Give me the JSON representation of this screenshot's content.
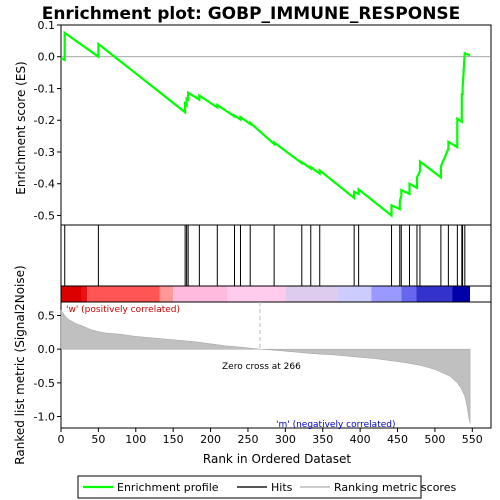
{
  "chart_data": [
    {
      "type": "line",
      "title": "Enrichment plot: GOBP_IMMUNE_RESPONSE",
      "ylabel": "Enrichment score (ES)",
      "ylim": [
        -0.53,
        0.1
      ],
      "yticks": [
        0.1,
        0.0,
        -0.1,
        -0.2,
        -0.3,
        -0.4,
        -0.5
      ],
      "ytick_labels": [
        "0.1",
        "0.0",
        "-0.1",
        "-0.2",
        "-0.3",
        "-0.4",
        "-0.5"
      ],
      "grid": false,
      "series": [
        {
          "name": "Enrichment profile",
          "color": "#00ff00",
          "x": [
            0,
            5,
            5,
            50,
            50,
            166,
            166,
            168,
            168,
            170,
            170,
            185,
            185,
            209,
            209,
            232,
            232,
            240,
            240,
            253,
            253,
            285,
            285,
            322,
            322,
            334,
            334,
            346,
            346,
            392,
            392,
            398,
            398,
            442,
            442,
            453,
            453,
            455,
            455,
            466,
            466,
            476,
            476,
            480,
            480,
            508,
            508,
            518,
            518,
            530,
            530,
            536,
            536,
            537,
            537,
            540,
            540,
            547
          ],
          "y": [
            -0.005,
            -0.01,
            0.075,
            0.0,
            0.04,
            -0.175,
            -0.148,
            -0.153,
            -0.132,
            -0.135,
            -0.113,
            -0.135,
            -0.122,
            -0.16,
            -0.152,
            -0.188,
            -0.185,
            -0.198,
            -0.19,
            -0.212,
            -0.208,
            -0.275,
            -0.27,
            -0.335,
            -0.332,
            -0.352,
            -0.348,
            -0.368,
            -0.358,
            -0.445,
            -0.425,
            -0.432,
            -0.418,
            -0.5,
            -0.468,
            -0.48,
            -0.455,
            -0.438,
            -0.42,
            -0.432,
            -0.4,
            -0.413,
            -0.38,
            -0.36,
            -0.33,
            -0.38,
            -0.345,
            -0.29,
            -0.268,
            -0.285,
            -0.195,
            -0.205,
            -0.115,
            -0.12,
            -0.1,
            0.015,
            0.01,
            0.005
          ]
        }
      ]
    },
    {
      "type": "hits",
      "legend_label": "Hits",
      "positions": [
        5,
        50,
        166,
        168,
        170,
        185,
        209,
        232,
        240,
        253,
        285,
        322,
        334,
        346,
        392,
        398,
        442,
        453,
        455,
        466,
        476,
        480,
        508,
        518,
        530,
        536,
        537,
        540
      ]
    },
    {
      "type": "heatmap",
      "description": "ranked list color bar",
      "colors": [
        "#dd0000",
        "#ee1111",
        "#ff5555",
        "#ff7777",
        "#ff9999",
        "#ffbbdd",
        "#ffccee",
        "#ddccee",
        "#ccccff",
        "#9999ff",
        "#6666ee",
        "#3333cc",
        "#0000aa"
      ],
      "boundaries": [
        0,
        28,
        35,
        132,
        133,
        150,
        222,
        300,
        370,
        415,
        455,
        475,
        523,
        547
      ]
    },
    {
      "type": "area",
      "ylabel": "Ranked list metric (Signal2Noise)",
      "xlabel": "Rank in Ordered Dataset",
      "xlim": [
        0,
        575
      ],
      "ylim": [
        -1.17,
        0.7
      ],
      "xticks": [
        0,
        50,
        100,
        150,
        200,
        250,
        300,
        350,
        400,
        450,
        500,
        550
      ],
      "xtick_labels": [
        "0",
        "50",
        "100",
        "150",
        "200",
        "250",
        "300",
        "350",
        "400",
        "450",
        "500",
        "550"
      ],
      "yticks": [
        0.5,
        0.0,
        -0.5,
        -1.0
      ],
      "ytick_labels": [
        "0.5",
        "0.0",
        "-0.5",
        "-1.0"
      ],
      "x": [
        0,
        5,
        10,
        20,
        30,
        40,
        50,
        60,
        80,
        100,
        120,
        140,
        160,
        180,
        200,
        220,
        240,
        266,
        280,
        300,
        320,
        340,
        360,
        380,
        400,
        420,
        440,
        460,
        480,
        500,
        510,
        520,
        530,
        535,
        540,
        543,
        545,
        547
      ],
      "values": [
        0.58,
        0.5,
        0.44,
        0.38,
        0.34,
        0.29,
        0.26,
        0.24,
        0.22,
        0.19,
        0.17,
        0.15,
        0.13,
        0.11,
        0.08,
        0.05,
        0.03,
        0.0,
        -0.01,
        -0.03,
        -0.05,
        -0.07,
        -0.08,
        -0.1,
        -0.12,
        -0.14,
        -0.17,
        -0.2,
        -0.24,
        -0.3,
        -0.35,
        -0.4,
        -0.5,
        -0.58,
        -0.7,
        -0.85,
        -1.0,
        -1.1
      ],
      "zero_cross": 266,
      "zero_cross_label": "Zero cross at 266",
      "pos_label": "'w' (positively correlated)",
      "neg_label": "'m' (negatively correlated)",
      "fill_color": "#c0c0c0"
    }
  ],
  "legend": {
    "items": [
      {
        "label": "Enrichment profile",
        "color": "#00ff00"
      },
      {
        "label": "Hits",
        "color": "#555555"
      },
      {
        "label": "Ranking metric scores",
        "color": "#cccccc"
      }
    ]
  }
}
